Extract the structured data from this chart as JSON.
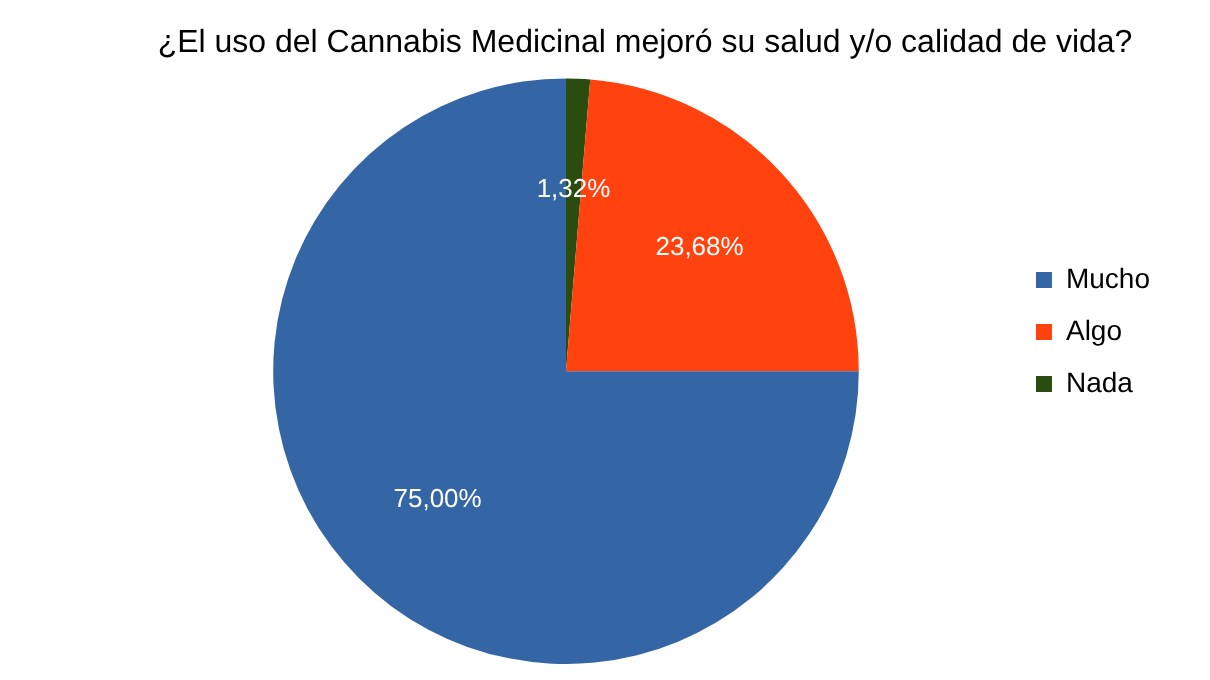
{
  "chart_data": {
    "type": "pie",
    "title": "¿El uso del Cannabis Medicinal mejoró su salud y/o calidad de vida?",
    "categories": [
      "Mucho",
      "Algo",
      "Nada"
    ],
    "values": [
      75,
      23.68,
      1.32
    ],
    "value_labels": [
      "75,00%",
      "23,68%",
      "1,32%"
    ],
    "colors": [
      "#3465a4",
      "#ff420e",
      "#2a4c0f"
    ],
    "legend": "right"
  }
}
